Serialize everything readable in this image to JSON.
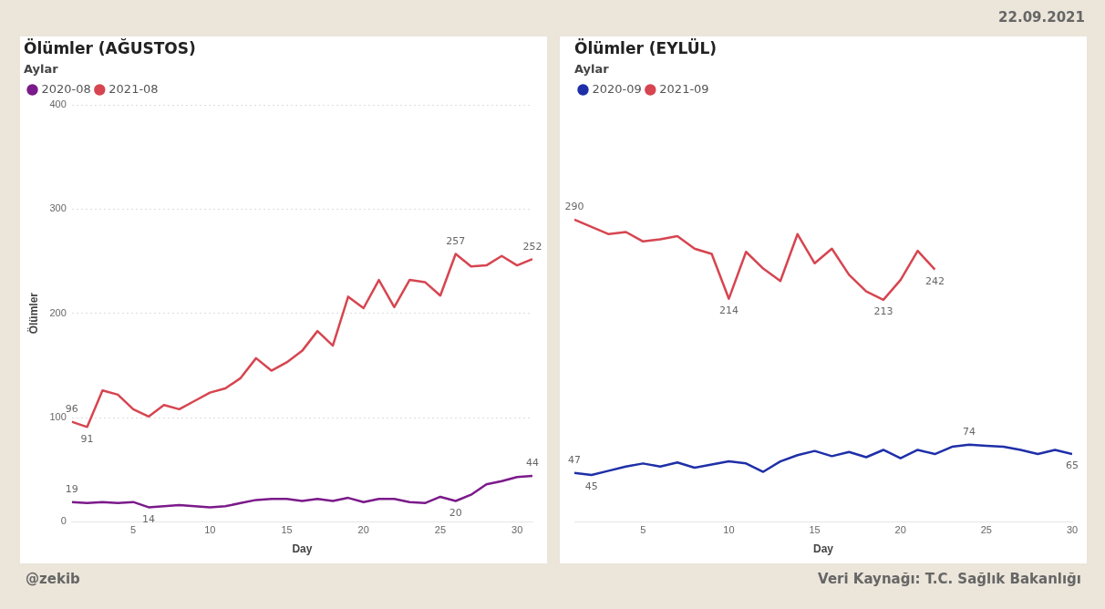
{
  "chart_data": [
    {
      "type": "line",
      "title": "Ölümler (AĞUSTOS)",
      "legend_title": "Aylar",
      "legend": "top left",
      "xlabel": "Day",
      "ylabel": "Ölümler",
      "x": [
        1,
        2,
        3,
        4,
        5,
        6,
        7,
        8,
        9,
        10,
        11,
        12,
        13,
        14,
        15,
        16,
        17,
        18,
        19,
        20,
        21,
        22,
        23,
        24,
        25,
        26,
        27,
        28,
        29,
        30,
        31
      ],
      "xlim": [
        1,
        31
      ],
      "xticks": [
        5,
        10,
        15,
        20,
        25,
        30
      ],
      "ylim": [
        0,
        400
      ],
      "yticks": [
        0,
        100,
        200,
        300,
        400
      ],
      "grid": "y",
      "marker": "none",
      "line_style": "solid",
      "annotations": [
        "@zekib"
      ],
      "series": [
        {
          "name": "2020-08",
          "color": "#7b1a8a",
          "values": [
            19,
            18,
            19,
            18,
            19,
            14,
            15,
            16,
            15,
            14,
            15,
            18,
            21,
            22,
            22,
            20,
            22,
            20,
            23,
            19,
            22,
            22,
            19,
            18,
            24,
            20,
            26,
            36,
            39,
            43,
            44
          ],
          "value_labels": [
            "19",
            null,
            null,
            null,
            null,
            "14",
            null,
            null,
            null,
            null,
            null,
            null,
            null,
            null,
            null,
            null,
            null,
            null,
            null,
            null,
            null,
            null,
            null,
            null,
            null,
            "20",
            null,
            null,
            null,
            null,
            "44"
          ]
        },
        {
          "name": "2021-08",
          "color": "#d64550",
          "values": [
            96,
            91,
            126,
            122,
            108,
            101,
            112,
            108,
            116,
            124,
            128,
            138,
            157,
            145,
            153,
            164,
            183,
            169,
            216,
            205,
            232,
            206,
            232,
            230,
            217,
            257,
            245,
            246,
            255,
            246,
            252
          ],
          "value_labels": [
            "96",
            "91",
            null,
            null,
            null,
            null,
            null,
            null,
            null,
            null,
            null,
            null,
            null,
            null,
            null,
            null,
            null,
            null,
            null,
            null,
            null,
            null,
            null,
            null,
            null,
            "257",
            null,
            null,
            null,
            null,
            "252"
          ]
        }
      ]
    },
    {
      "type": "line",
      "title": "Ölümler (EYLÜL)",
      "legend_title": "Aylar",
      "legend": "top left",
      "xlabel": "Day",
      "x": [
        1,
        2,
        3,
        4,
        5,
        6,
        7,
        8,
        9,
        10,
        11,
        12,
        13,
        14,
        15,
        16,
        17,
        18,
        19,
        20,
        21,
        22,
        23,
        24,
        25,
        26,
        27,
        28,
        29,
        30
      ],
      "xlim": [
        1,
        30
      ],
      "xticks": [
        5,
        10,
        15,
        20,
        25,
        30
      ],
      "ylim": [
        0,
        400
      ],
      "tick_labels": "x",
      "marker": "none",
      "line_style": "solid",
      "annotations": [
        "22.09.2021",
        "Veri Kaynağı: T.C. Sağlık Bakanlığı"
      ],
      "series": [
        {
          "name": "2020-09",
          "color": "#1f2fa8",
          "values": [
            47,
            45,
            49,
            53,
            56,
            53,
            57,
            52,
            55,
            58,
            56,
            48,
            58,
            64,
            68,
            63,
            67,
            62,
            69,
            61,
            69,
            65,
            72,
            74,
            73,
            72,
            69,
            65,
            69,
            65
          ],
          "value_labels": [
            "47",
            "45",
            null,
            null,
            null,
            null,
            null,
            null,
            null,
            null,
            null,
            null,
            null,
            null,
            null,
            null,
            null,
            null,
            null,
            null,
            null,
            null,
            null,
            "74",
            null,
            null,
            null,
            null,
            null,
            "65"
          ]
        },
        {
          "name": "2021-09",
          "color": "#d64550",
          "values": [
            290,
            283,
            276,
            278,
            269,
            271,
            274,
            262,
            257,
            214,
            259,
            243,
            231,
            276,
            248,
            262,
            237,
            221,
            213,
            232,
            260,
            242,
            null,
            null,
            null,
            null,
            null,
            null,
            null,
            null
          ],
          "value_labels": [
            "290",
            null,
            null,
            null,
            null,
            null,
            null,
            null,
            null,
            "214",
            null,
            null,
            null,
            null,
            null,
            null,
            null,
            null,
            "213",
            null,
            null,
            "242",
            null,
            null,
            null,
            null,
            null,
            null,
            null,
            null
          ]
        }
      ]
    }
  ]
}
